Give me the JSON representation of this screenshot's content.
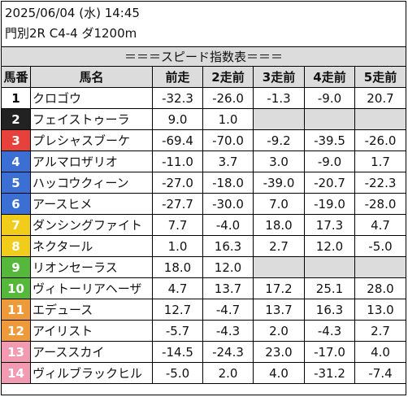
{
  "header": {
    "datetime": "2025/06/04 (水) 14:45",
    "race": "門別2R C4-4 ダ1200m"
  },
  "table": {
    "title": "＝＝＝スピード指数表＝＝＝",
    "columns": [
      "馬番",
      "馬名",
      "前走",
      "2走前",
      "3走前",
      "4走前",
      "5走前"
    ],
    "rows": [
      {
        "num": "1",
        "name": "クロゴウ",
        "vals": [
          "-32.3",
          "-26.0",
          "-1.3",
          "-9.0",
          "20.7"
        ]
      },
      {
        "num": "2",
        "name": "フェイストゥーラ",
        "vals": [
          "9.0",
          "1.0",
          "",
          "",
          ""
        ]
      },
      {
        "num": "3",
        "name": "プレシャスブーケ",
        "vals": [
          "-69.4",
          "-70.0",
          "-9.2",
          "-39.5",
          "-26.0"
        ]
      },
      {
        "num": "4",
        "name": "アルマロザリオ",
        "vals": [
          "-11.0",
          "3.7",
          "3.0",
          "-9.0",
          "1.7"
        ]
      },
      {
        "num": "5",
        "name": "ハッコウクィーン",
        "vals": [
          "-27.0",
          "-18.0",
          "-39.0",
          "-20.7",
          "-22.3"
        ]
      },
      {
        "num": "6",
        "name": "アースヒメ",
        "vals": [
          "-27.7",
          "-30.0",
          "7.0",
          "-19.0",
          "-28.0"
        ]
      },
      {
        "num": "7",
        "name": "ダンシングファイト",
        "vals": [
          "7.7",
          "-4.0",
          "18.0",
          "17.3",
          "4.7"
        ]
      },
      {
        "num": "8",
        "name": "ネクタール",
        "vals": [
          "1.0",
          "16.3",
          "2.7",
          "12.0",
          "-5.0"
        ]
      },
      {
        "num": "9",
        "name": "リオンセーラス",
        "vals": [
          "18.0",
          "12.0",
          "",
          "",
          ""
        ]
      },
      {
        "num": "10",
        "name": "ヴィトーリアヘーザ",
        "vals": [
          "4.7",
          "13.7",
          "17.2",
          "25.1",
          "28.0"
        ]
      },
      {
        "num": "11",
        "name": "エデュース",
        "vals": [
          "12.7",
          "-4.7",
          "13.7",
          "16.3",
          "13.0"
        ]
      },
      {
        "num": "12",
        "name": "アイリスト",
        "vals": [
          "-5.7",
          "-4.3",
          "2.0",
          "-4.3",
          "2.7"
        ]
      },
      {
        "num": "13",
        "name": "アーススカイ",
        "vals": [
          "-14.5",
          "-24.3",
          "23.0",
          "-17.0",
          "4.0"
        ]
      },
      {
        "num": "14",
        "name": "ヴィルブラックヒル",
        "vals": [
          "-5.0",
          "2.0",
          "4.0",
          "-31.2",
          "-7.4"
        ]
      }
    ],
    "blank_color": "#dcdcdc",
    "header_color": "#dcdcdc"
  },
  "post_colors": {
    "1": {
      "bg": "#ffffff",
      "fg": "#000000"
    },
    "2": {
      "bg": "#222222",
      "fg": "#ffffff"
    },
    "3": {
      "bg": "#e8403a",
      "fg": "#ffffff"
    },
    "4": {
      "bg": "#3b6fd4",
      "fg": "#ffffff"
    },
    "5": {
      "bg": "#3b6fd4",
      "fg": "#ffffff"
    },
    "6": {
      "bg": "#3b6fd4",
      "fg": "#ffffff"
    },
    "7": {
      "bg": "#f2cc1a",
      "fg": "#ffffff"
    },
    "8": {
      "bg": "#f2cc1a",
      "fg": "#ffffff"
    },
    "9": {
      "bg": "#55b83a",
      "fg": "#ffffff"
    },
    "10": {
      "bg": "#55b83a",
      "fg": "#ffffff"
    },
    "11": {
      "bg": "#ef9a3a",
      "fg": "#ffffff"
    },
    "12": {
      "bg": "#ef9a3a",
      "fg": "#ffffff"
    },
    "13": {
      "bg": "#f29ab2",
      "fg": "#ffffff"
    },
    "14": {
      "bg": "#f29ab2",
      "fg": "#ffffff"
    }
  }
}
